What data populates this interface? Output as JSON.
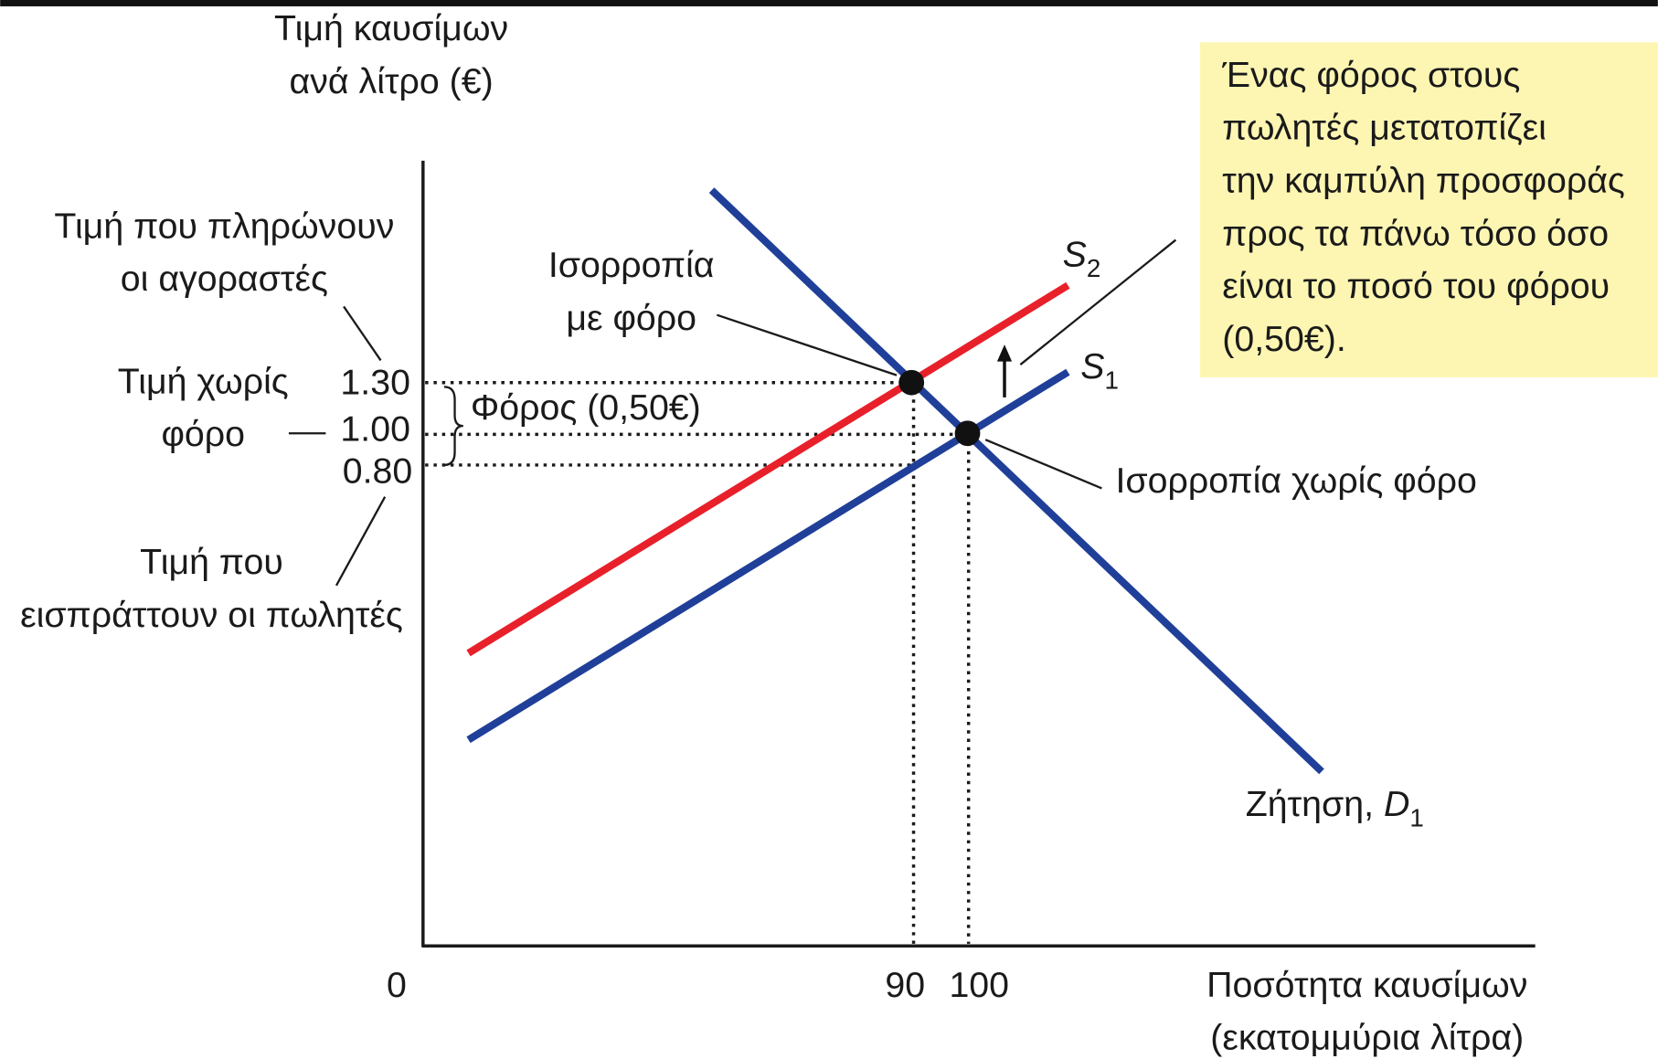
{
  "axes": {
    "y_label": [
      "Τιμή καυσίμων",
      "ανά λίτρο (€)"
    ],
    "x_label": [
      "Ποσότητα καυσίμων",
      "(εκατομμύρια λίτρα)"
    ],
    "origin": "0",
    "x_ticks": [
      "90",
      "100"
    ],
    "y_ticks": [
      "1.30",
      "1.00",
      "0.80"
    ]
  },
  "annotations": {
    "buyers_price": [
      "Τιμή που πληρώνουν",
      "οι αγοραστές"
    ],
    "price_no_tax": [
      "Τιμή χωρίς",
      "φόρο"
    ],
    "sellers_price": [
      "Τιμή που",
      "εισπράττουν οι πωλητές"
    ],
    "tax": "Φόρος (0,50€)",
    "eq_tax": [
      "Ισορροπία",
      "με φόρο"
    ],
    "eq_no_tax": "Ισορροπία χωρίς φόρο",
    "note": [
      "Ένας φόρος στους",
      "πωλητές μετατοπίζει",
      "την καμπύλη προσφοράς",
      "προς τα πάνω τόσο όσο",
      "είναι το ποσό του φόρου",
      "(0,50€)."
    ]
  },
  "curves": {
    "s2": {
      "name": "S",
      "sub": "2"
    },
    "s1": {
      "name": "S",
      "sub": "1"
    },
    "d1": {
      "name": "Ζήτηση, ",
      "symbol": "D",
      "sub": "1"
    }
  }
}
